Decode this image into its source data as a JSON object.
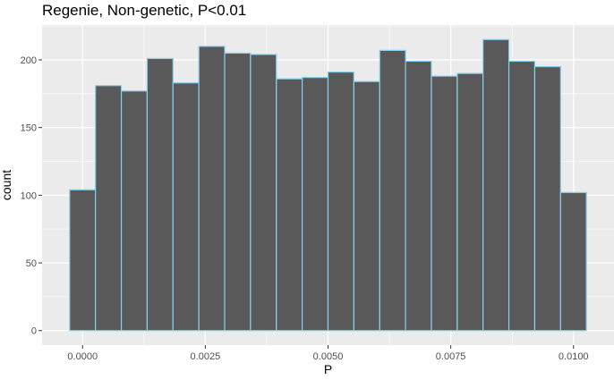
{
  "chart_data": {
    "type": "bar",
    "title": "Regenie, Non-genetic, P<0.01",
    "xlabel": "P",
    "ylabel": "count",
    "bin_width": 0.000526,
    "bin_centers": [
      0.0,
      0.000526,
      0.001053,
      0.001579,
      0.002105,
      0.002632,
      0.003158,
      0.003684,
      0.004211,
      0.004737,
      0.005263,
      0.005789,
      0.006316,
      0.006842,
      0.007368,
      0.007895,
      0.008421,
      0.008947,
      0.009474,
      0.01
    ],
    "values": [
      104,
      181,
      177,
      201,
      183,
      210,
      205,
      204,
      186,
      187,
      191,
      184,
      207,
      199,
      188,
      190,
      215,
      199,
      195,
      102
    ],
    "xlim": [
      -0.000825,
      0.010825
    ],
    "ylim": [
      -10.75,
      225.75
    ],
    "x_ticks": [
      0.0,
      0.0025,
      0.005,
      0.0075,
      0.01
    ],
    "x_tick_labels": [
      "0.0000",
      "0.0025",
      "0.0050",
      "0.0075",
      "0.0100"
    ],
    "y_ticks": [
      0,
      50,
      100,
      150,
      200
    ],
    "y_tick_labels": [
      "0",
      "50",
      "100",
      "150",
      "200"
    ],
    "grid": true,
    "colors": {
      "panel": "#ebebeb",
      "grid_major": "#ffffff",
      "bar_fill": "#595959",
      "bar_outline": "#87ceeb"
    }
  }
}
